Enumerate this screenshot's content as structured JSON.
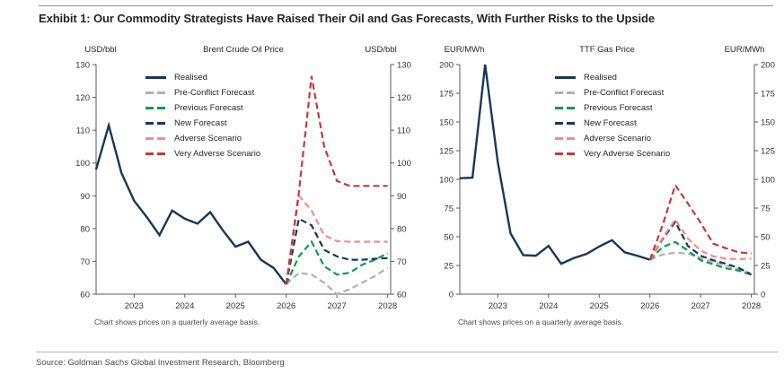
{
  "header": {
    "title": "Exhibit 1: Our Commodity Strategists Have Raised Their Oil and Gas Forecasts, With Further Risks to the Upside"
  },
  "source": {
    "text": "Source: Goldman Sachs Global Investment Research, Bloomberg"
  },
  "colors": {
    "realised_navy": "#17375c",
    "pre_conflict_gray": "#b0b0b0",
    "previous_green": "#109b50",
    "adverse_salmon": "#f28b8d",
    "very_adverse_red": "#c23b40",
    "axis_gray": "#5a5a5a"
  },
  "chart_data": [
    {
      "type": "line",
      "title": "Brent Crude Oil Price",
      "unit_left": "USD/bbl",
      "unit_right": "USD/bbl",
      "footnote": "Chart shows prices on a quarterly average basis.",
      "ylim": [
        60,
        130
      ],
      "yticks": [
        60,
        70,
        80,
        90,
        100,
        110,
        120,
        130
      ],
      "xlim": [
        2022.25,
        2028.06
      ],
      "xticks": [
        2023,
        2024,
        2025,
        2026,
        2027,
        2028
      ],
      "legend_position": "upper-left",
      "grid": false,
      "series": [
        {
          "name": "Realised",
          "color": "#17375c",
          "dashed": false,
          "x": [
            2022.25,
            2022.5,
            2022.75,
            2023,
            2023.25,
            2023.5,
            2023.75,
            2024,
            2024.25,
            2024.5,
            2024.75,
            2025,
            2025.25,
            2025.5,
            2025.75,
            2026
          ],
          "y": [
            98,
            111.5,
            97,
            88.5,
            83.5,
            78,
            85.5,
            83,
            81.5,
            85,
            79.5,
            74.5,
            76,
            70.5,
            68,
            63
          ]
        },
        {
          "name": "Pre-Conflict Forecast",
          "color": "#b0b0b0",
          "dashed": true,
          "x": [
            2026,
            2026.25,
            2026.5,
            2026.75,
            2027,
            2027.25,
            2027.5,
            2027.75,
            2028
          ],
          "y": [
            63,
            66.5,
            66,
            63.5,
            60,
            61.5,
            63.5,
            65.5,
            68
          ]
        },
        {
          "name": "Previous Forecast",
          "color": "#109b50",
          "dashed": true,
          "x": [
            2026,
            2026.25,
            2026.5,
            2026.75,
            2027,
            2027.25,
            2027.5,
            2027.75,
            2028
          ],
          "y": [
            63,
            71.5,
            76,
            68.5,
            66,
            66.5,
            69,
            70.5,
            72.5
          ]
        },
        {
          "name": "New Forecast",
          "color": "#17375c",
          "dashed": true,
          "x": [
            2026,
            2026.25,
            2026.5,
            2026.75,
            2027,
            2027.25,
            2027.5,
            2027.75,
            2028
          ],
          "y": [
            63,
            83,
            81,
            73.5,
            71.5,
            70.5,
            70.5,
            70.8,
            71
          ]
        },
        {
          "name": "Adverse Scenario",
          "color": "#f28b8d",
          "dashed": true,
          "x": [
            2026,
            2026.25,
            2026.5,
            2026.75,
            2027,
            2027.25,
            2027.5,
            2027.75,
            2028
          ],
          "y": [
            63,
            90,
            85.5,
            78,
            76.2,
            76,
            76,
            76,
            76
          ]
        },
        {
          "name": "Very Adverse Scenario",
          "color": "#c23b40",
          "dashed": true,
          "x": [
            2026,
            2026.25,
            2026.5,
            2026.75,
            2027,
            2027.25,
            2027.5,
            2027.75,
            2028
          ],
          "y": [
            63,
            91,
            126.5,
            105,
            94.5,
            93,
            93,
            93,
            93
          ]
        }
      ]
    },
    {
      "type": "line",
      "title": "TTF Gas Price",
      "unit_left": "EUR/MWh",
      "unit_right": "EUR/MWh",
      "footnote": "Chart shows prices on a quarterly average basis.",
      "ylim": [
        0,
        200
      ],
      "yticks": [
        0,
        25,
        50,
        75,
        100,
        125,
        150,
        175,
        200
      ],
      "xlim": [
        2022.25,
        2028.06
      ],
      "xticks": [
        2023,
        2024,
        2025,
        2026,
        2027,
        2028
      ],
      "legend_position": "upper-center",
      "grid": false,
      "series": [
        {
          "name": "Realised",
          "color": "#17375c",
          "dashed": false,
          "x": [
            2022.25,
            2022.5,
            2022.75,
            2023,
            2023.25,
            2023.5,
            2023.75,
            2024,
            2024.25,
            2024.5,
            2024.75,
            2025,
            2025.25,
            2025.5,
            2025.75,
            2026
          ],
          "y": [
            101,
            101.5,
            200,
            115,
            53,
            34,
            33.5,
            42,
            26.5,
            31.5,
            35,
            41.5,
            47,
            36.5,
            33.5,
            30
          ]
        },
        {
          "name": "Pre-Conflict Forecast",
          "color": "#b0b0b0",
          "dashed": true,
          "x": [
            2026,
            2026.25,
            2026.5,
            2026.75,
            2027,
            2027.25,
            2027.5,
            2027.75,
            2028
          ],
          "y": [
            30,
            34.5,
            36,
            35.5,
            31.5,
            28,
            25,
            21.5,
            18
          ]
        },
        {
          "name": "Previous Forecast",
          "color": "#109b50",
          "dashed": true,
          "x": [
            2026,
            2026.25,
            2026.5,
            2026.75,
            2027,
            2027.25,
            2027.5,
            2027.75,
            2028
          ],
          "y": [
            30,
            41,
            45.5,
            38,
            29.5,
            26,
            22.5,
            20.5,
            17
          ]
        },
        {
          "name": "New Forecast",
          "color": "#17375c",
          "dashed": true,
          "x": [
            2026,
            2026.25,
            2026.5,
            2026.75,
            2027,
            2027.25,
            2027.5,
            2027.75,
            2028
          ],
          "y": [
            30,
            48,
            63,
            42,
            33.5,
            29.5,
            26.5,
            23,
            17
          ]
        },
        {
          "name": "Adverse Scenario",
          "color": "#f28b8d",
          "dashed": true,
          "x": [
            2026,
            2026.25,
            2026.5,
            2026.75,
            2027,
            2027.25,
            2027.5,
            2027.75,
            2028
          ],
          "y": [
            30,
            49,
            65,
            48.5,
            38,
            33,
            31,
            30.5,
            31
          ]
        },
        {
          "name": "Very Adverse Scenario",
          "color": "#c23b40",
          "dashed": true,
          "x": [
            2026,
            2026.25,
            2026.5,
            2026.75,
            2027,
            2027.25,
            2027.5,
            2027.75,
            2028
          ],
          "y": [
            30,
            60,
            95,
            79,
            62,
            44,
            40,
            36.5,
            35.5
          ]
        }
      ]
    }
  ]
}
